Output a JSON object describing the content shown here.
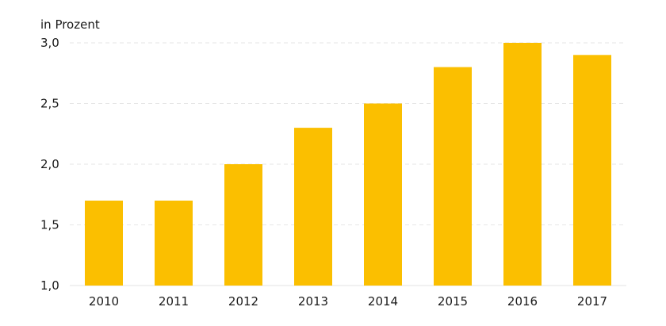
{
  "chart_data": {
    "type": "bar",
    "ylabel": "in Prozent",
    "categories": [
      "2010",
      "2011",
      "2012",
      "2013",
      "2014",
      "2015",
      "2016",
      "2017"
    ],
    "values": [
      1.7,
      1.7,
      2.0,
      2.3,
      2.5,
      2.8,
      3.0,
      2.9
    ],
    "ylim": [
      1.0,
      3.0
    ],
    "yticks": [
      1.0,
      1.5,
      2.0,
      2.5,
      3.0
    ],
    "ytick_labels": [
      "1,0",
      "1,5",
      "2,0",
      "2,5",
      "3,0"
    ],
    "grid": true,
    "bar_color": "#fbbf00"
  }
}
